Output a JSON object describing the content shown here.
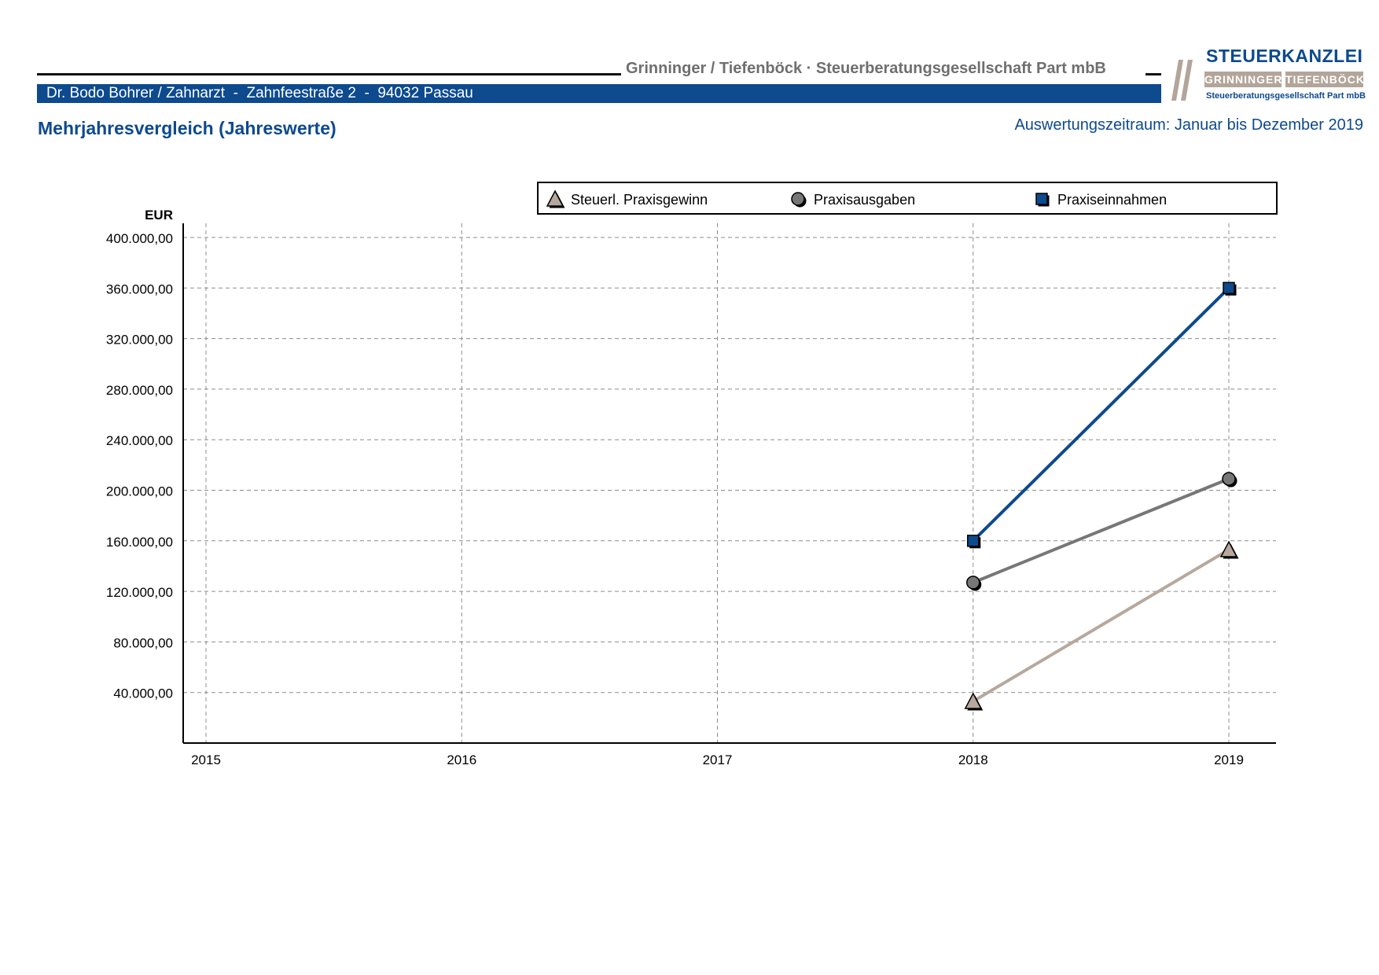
{
  "header": {
    "firm_name": "Grinninger / Tiefenböck · Steuerberatungsgesellschaft Part mbB",
    "client_line": "Dr. Bodo Bohrer / Zahnarzt  -  Zahnfeestraße 2  -  94032 Passau",
    "report_title": "Mehrjahresvergleich (Jahreswerte)",
    "period": "Auswertungszeitraum: Januar bis Dezember 2019"
  },
  "logo": {
    "brand": "STEUERKANZLEI",
    "name_left": "GRINNINGER",
    "name_right": "TIEFENBÖCK",
    "subline": "Steuerberatungsgesellschaft Part mbB"
  },
  "colors": {
    "brand_blue": "#0d4a8e",
    "gray_text": "#6f6f6f",
    "logo_taupe": "#b3a59a"
  },
  "chart_data": {
    "type": "line",
    "title": "",
    "ylabel": "EUR",
    "xlabel": "",
    "x": [
      "2015",
      "2016",
      "2017",
      "2018",
      "2019"
    ],
    "ylim": [
      0,
      400000
    ],
    "yticks": [
      40000,
      80000,
      120000,
      160000,
      200000,
      240000,
      280000,
      320000,
      360000,
      400000
    ],
    "ytick_labels": [
      "40.000,00",
      "80.000,00",
      "120.000,00",
      "160.000,00",
      "200.000,00",
      "240.000,00",
      "280.000,00",
      "320.000,00",
      "360.000,00",
      "400.000,00"
    ],
    "grid": true,
    "legend_position": "top-right",
    "series": [
      {
        "name": "Steuerl. Praxisgewinn",
        "marker": "triangle",
        "color": "#b7a89d",
        "values": [
          null,
          null,
          null,
          33000,
          153000
        ]
      },
      {
        "name": "Praxisausgaben",
        "marker": "circle",
        "color": "#777777",
        "values": [
          null,
          null,
          null,
          127000,
          209000
        ]
      },
      {
        "name": "Praxiseinnahmen",
        "marker": "square",
        "color": "#0d4a8e",
        "values": [
          null,
          null,
          null,
          160000,
          360000
        ]
      }
    ]
  }
}
